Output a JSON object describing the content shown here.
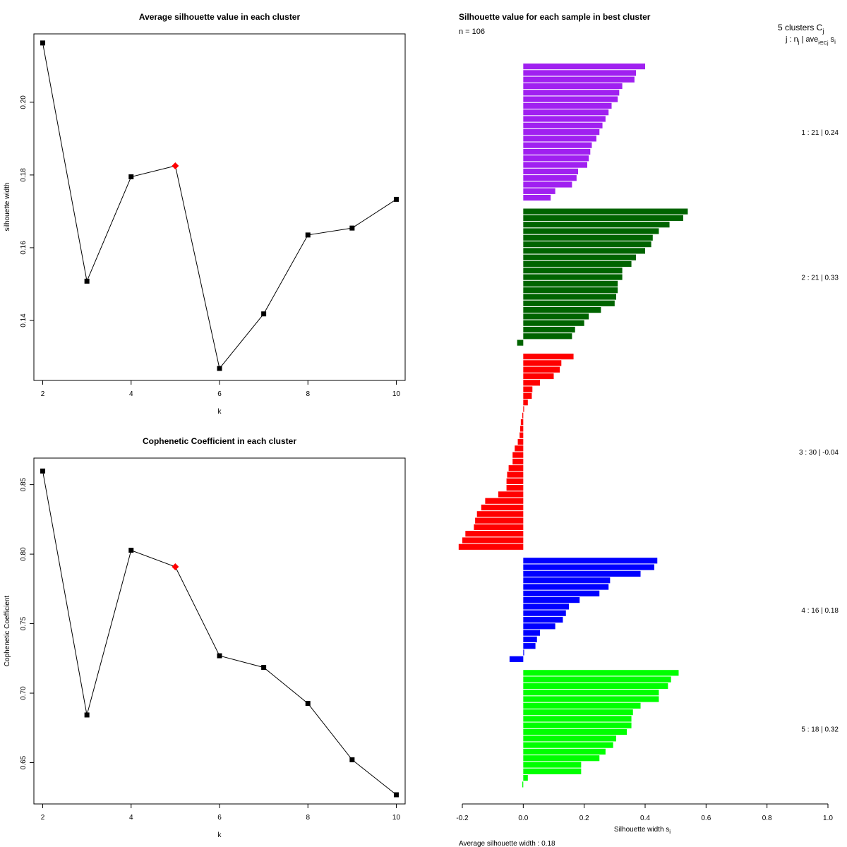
{
  "chart_data": [
    {
      "type": "line",
      "title": "Average silhouette value in each cluster",
      "xlabel": "k",
      "ylabel": "silhouette width",
      "x": [
        2,
        3,
        4,
        5,
        6,
        7,
        8,
        9,
        10
      ],
      "y": [
        0.2163,
        0.1508,
        0.1795,
        0.1825,
        0.1268,
        0.1418,
        0.1635,
        0.1654,
        0.1733
      ],
      "highlight_x": 5,
      "highlight_color": "#ff0000",
      "xlim": [
        1.8,
        10.2
      ],
      "ylim": [
        0.1235,
        0.2188
      ],
      "xticks": [
        "2",
        "4",
        "6",
        "8",
        "10"
      ],
      "yticks": [
        "0.14",
        "0.16",
        "0.18",
        "0.20"
      ]
    },
    {
      "type": "line",
      "title": "Cophenetic Coefficient in each cluster",
      "xlabel": "k",
      "ylabel": "Cophenetic Coefficient",
      "x": [
        2,
        3,
        4,
        5,
        6,
        7,
        8,
        9,
        10
      ],
      "y": [
        0.8598,
        0.6843,
        0.8028,
        0.7909,
        0.7269,
        0.7185,
        0.6926,
        0.6521,
        0.6269
      ],
      "highlight_x": 5,
      "highlight_color": "#ff0000",
      "xlim": [
        1.8,
        10.2
      ],
      "ylim": [
        0.6203,
        0.8691
      ],
      "xticks": [
        "2",
        "4",
        "6",
        "8",
        "10"
      ],
      "yticks": [
        "0.65",
        "0.70",
        "0.75",
        "0.80",
        "0.85"
      ]
    },
    {
      "type": "bar",
      "orientation": "horizontal",
      "title": "Silhouette value for each sample in best cluster",
      "n_label": "n = 106",
      "legend_header": "5 clusters  C",
      "legend_header_sub": "j",
      "legend_sub": "j :  n",
      "legend_sub_j": "j",
      "legend_sub_ave": " | ave",
      "legend_sub_ij": "i∈Cj",
      "legend_sub_s": " s",
      "legend_sub_si": "i",
      "xlabel": "Silhouette width  s",
      "xlabel_sub": "i",
      "xlim": [
        -0.2,
        1.0
      ],
      "xticks": [
        "-0.2",
        "0.0",
        "0.2",
        "0.4",
        "0.6",
        "0.8",
        "1.0"
      ],
      "footer": "Average silhouette width :  0.18",
      "clusters": [
        {
          "label": "1 :  21  |  0.24",
          "color": "#a020f0",
          "values": [
            0.4,
            0.37,
            0.365,
            0.325,
            0.315,
            0.31,
            0.29,
            0.28,
            0.27,
            0.26,
            0.25,
            0.24,
            0.225,
            0.22,
            0.215,
            0.21,
            0.18,
            0.175,
            0.16,
            0.105,
            0.09
          ]
        },
        {
          "label": "2 :  21  |  0.33",
          "color": "#006400",
          "values": [
            0.54,
            0.525,
            0.48,
            0.445,
            0.425,
            0.42,
            0.4,
            0.37,
            0.355,
            0.325,
            0.325,
            0.31,
            0.31,
            0.305,
            0.3,
            0.255,
            0.215,
            0.2,
            0.17,
            0.16,
            -0.02
          ]
        },
        {
          "label": "3 :  30  |  -0.04",
          "color": "#ff0000",
          "values": [
            0.165,
            0.125,
            0.12,
            0.1,
            0.055,
            0.03,
            0.028,
            0.015,
            0.0,
            -0.003,
            -0.008,
            -0.01,
            -0.012,
            -0.018,
            -0.028,
            -0.035,
            -0.035,
            -0.048,
            -0.053,
            -0.055,
            -0.055,
            -0.082,
            -0.125,
            -0.138,
            -0.152,
            -0.158,
            -0.162,
            -0.19,
            -0.2,
            -0.212
          ]
        },
        {
          "label": "4 :  16  |  0.18",
          "color": "#0000ff",
          "values": [
            0.44,
            0.43,
            0.385,
            0.285,
            0.28,
            0.25,
            0.185,
            0.15,
            0.14,
            0.13,
            0.105,
            0.055,
            0.045,
            0.04,
            0.0,
            -0.045
          ]
        },
        {
          "label": "5 :  18  |  0.32",
          "color": "#00ff00",
          "values": [
            0.51,
            0.485,
            0.475,
            0.445,
            0.445,
            0.385,
            0.36,
            0.355,
            0.355,
            0.34,
            0.305,
            0.295,
            0.27,
            0.25,
            0.19,
            0.19,
            0.015,
            -0.003
          ]
        }
      ]
    }
  ]
}
